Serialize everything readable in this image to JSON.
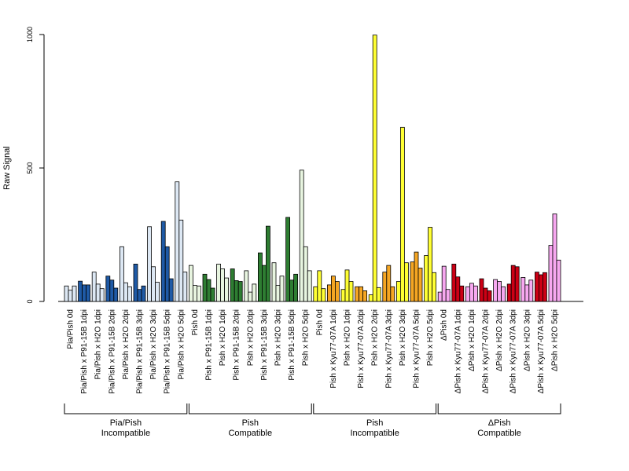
{
  "chart_data": {
    "type": "bar",
    "ylabel": "Raw Signal",
    "ylim": [
      0,
      1000
    ],
    "yticks": [
      0,
      500,
      1000
    ],
    "bar_border": "#000000",
    "categories": [
      "Pia/Pish 0d",
      "Pia/Pish x P91-15B 1dpi",
      "Pia/Pish x H2O 1dpi",
      "Pia/Pish x P91-15B 2dpi",
      "Pia/Pish x H2O 2dpi",
      "Pia/Pish x P91-15B 3dpi",
      "Pia/Pish x H2O 3dpi",
      "Pia/Pish x P91-15B 5dpi",
      "Pia/Pish x H2O 5dpi",
      "Pish 0d",
      "Pish x P91-15B 1dpi",
      "Pish x H2O 1dpi",
      "Pish x P91-15B 2dpi",
      "Pish x H2O 2dpi",
      "Pish x P91-15B 3dpi",
      "Pish x H2O 3dpi",
      "Pish x P91-15B 5dpi",
      "Pish x H2O 5dpi",
      "Pish 0d",
      "Pish x Kyu77-07A 1dpi",
      "Pish x H2O 1dpi",
      "Pish x Kyu77-07A 2dpi",
      "Pish x H2O 2dpi",
      "Pish x Kyu77-07A 3dpi",
      "Pish x H2O 3dpi",
      "Pish x Kyu77-07A 5dpi",
      "Pish x H2O 5dpi",
      "ΔPish 0d",
      "ΔPish x Kyu77-07A 1dpi",
      "ΔPish x H2O 1dpi",
      "ΔPish x Kyu77-07A 2dpi",
      "ΔPish x H2O 2dpi",
      "ΔPish x Kyu77-07A 3dpi",
      "ΔPish x H2O 3dpi",
      "ΔPish x Kyu77-07A 5dpi",
      "ΔPish x H2O 5dpi"
    ],
    "category_colors": [
      "#dde8f4",
      "#1f5aa6",
      "#dde8f4",
      "#1f5aa6",
      "#dde8f4",
      "#1f5aa6",
      "#dde8f4",
      "#1f5aa6",
      "#dde8f4",
      "#e8f5e0",
      "#2e7d32",
      "#e8f5e0",
      "#2e7d32",
      "#e8f5e0",
      "#2e7d32",
      "#e8f5e0",
      "#2e7d32",
      "#e8f5e0",
      "#ffff33",
      "#f5a623",
      "#ffff33",
      "#f5a623",
      "#ffff33",
      "#f5a623",
      "#ffff33",
      "#f5a623",
      "#ffff33",
      "#f7a8f0",
      "#cc0015",
      "#f7a8f0",
      "#cc0015",
      "#f7a8f0",
      "#cc0015",
      "#f7a8f0",
      "#cc0015",
      "#f7a8f0"
    ],
    "values": [
      [
        58,
        42,
        58
      ],
      [
        76,
        62,
        62
      ],
      [
        110,
        65,
        48
      ],
      [
        95,
        80,
        50
      ],
      [
        205,
        70,
        55
      ],
      [
        140,
        45,
        58
      ],
      [
        280,
        130,
        72
      ],
      [
        300,
        205,
        85
      ],
      [
        448,
        305,
        110
      ],
      [
        135,
        60,
        58
      ],
      [
        102,
        82,
        50
      ],
      [
        140,
        122,
        88
      ],
      [
        122,
        78,
        75
      ],
      [
        115,
        35,
        65
      ],
      [
        182,
        135,
        282
      ],
      [
        145,
        60,
        95
      ],
      [
        315,
        80,
        102
      ],
      [
        492,
        205,
        115
      ],
      [
        55,
        115,
        48
      ],
      [
        62,
        95,
        75
      ],
      [
        45,
        118,
        75
      ],
      [
        55,
        55,
        40
      ],
      [
        25,
        998,
        52
      ],
      [
        110,
        135,
        55
      ],
      [
        75,
        652,
        145
      ],
      [
        148,
        185,
        125
      ],
      [
        172,
        278,
        108
      ],
      [
        35,
        132,
        45
      ],
      [
        140,
        92,
        58
      ],
      [
        55,
        68,
        58
      ],
      [
        85,
        50,
        40
      ],
      [
        82,
        75,
        55
      ],
      [
        65,
        135,
        130
      ],
      [
        90,
        62,
        80
      ],
      [
        110,
        100,
        108
      ],
      [
        210,
        328,
        155
      ]
    ],
    "groups": [
      {
        "label_line1": "Pia/Pish",
        "label_line2": "Incompatible",
        "start": 0,
        "end": 8
      },
      {
        "label_line1": "Pish",
        "label_line2": "Compatible",
        "start": 9,
        "end": 17
      },
      {
        "label_line1": "Pish",
        "label_line2": "Incompatible",
        "start": 18,
        "end": 26
      },
      {
        "label_line1": "ΔPish",
        "label_line2": "Compatible",
        "start": 27,
        "end": 35
      }
    ]
  }
}
